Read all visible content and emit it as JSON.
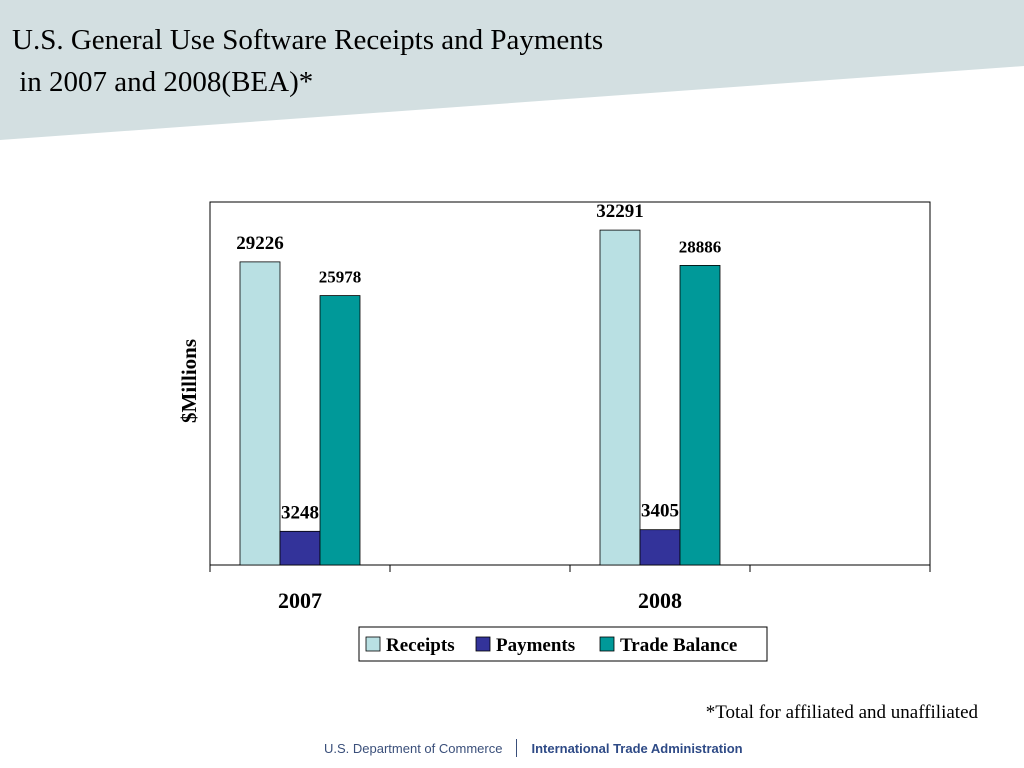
{
  "slide": {
    "title_line1": "U.S. General Use Software Receipts and Payments",
    "title_line2": " in 2007 and 2008(BEA)*",
    "footnote": "*Total for affiliated and unaffiliated",
    "footer_left": "U.S. Department of Commerce",
    "footer_right": "International Trade Administration"
  },
  "colors": {
    "header_band": "#d3dfe1",
    "receipts": "#b9e0e3",
    "payments": "#33339a",
    "trade_balance": "#009999"
  },
  "chart_data": {
    "type": "bar",
    "title": "",
    "xlabel": "",
    "ylabel": "$Millions",
    "categories": [
      "2007",
      "2008"
    ],
    "ylim": [
      0,
      35000
    ],
    "grid": false,
    "legend_position": "bottom",
    "series": [
      {
        "name": "Receipts",
        "values": [
          29226,
          32291
        ],
        "labels": [
          "29226",
          "32291"
        ]
      },
      {
        "name": "Payments",
        "values": [
          3248,
          3405
        ],
        "labels": [
          "3248",
          "3405"
        ]
      },
      {
        "name": "Trade Balance",
        "values": [
          25978,
          28886
        ],
        "labels": [
          "25978",
          "28886"
        ]
      }
    ]
  }
}
